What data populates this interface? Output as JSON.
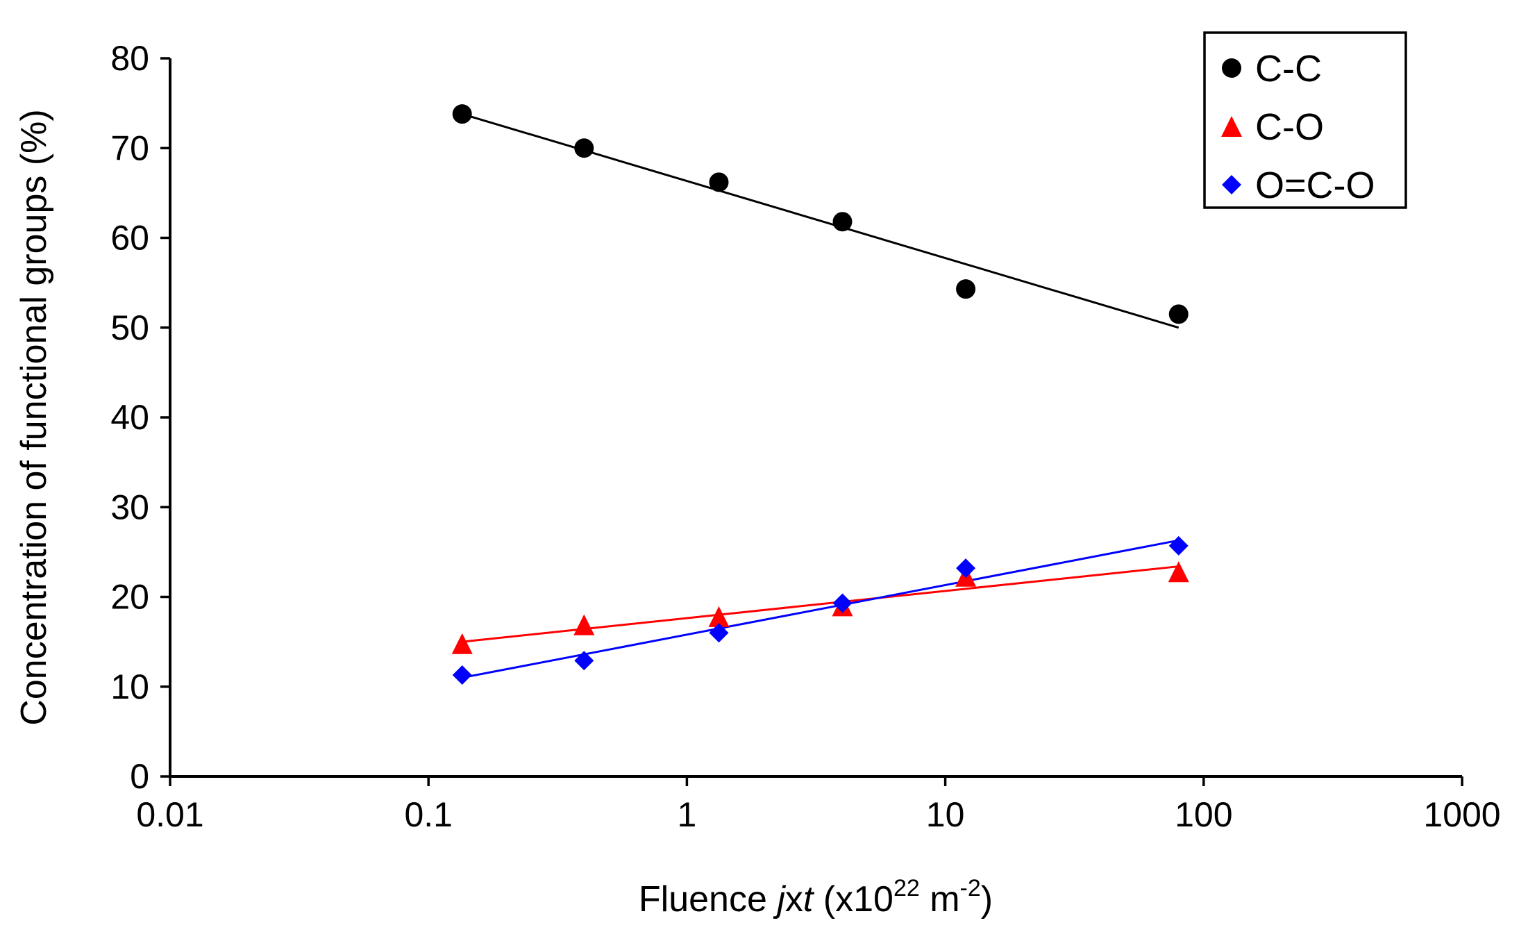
{
  "chart_data": {
    "type": "scatter",
    "title": "",
    "xlabel": {
      "prefix": "Fluence ",
      "italic": "j",
      "mid": "x",
      "italic2": "t",
      "unit_open": "  (x10",
      "sup1": "22",
      "unit_mid": " m",
      "sup2": "-2",
      "unit_close": ")"
    },
    "ylabel": "Concentration of functional groups (%)",
    "xscale": "log",
    "xlim": [
      0.01,
      1000
    ],
    "ylim": [
      0,
      80
    ],
    "xticks": [
      0.01,
      0.1,
      1,
      10,
      100,
      1000
    ],
    "xtick_labels": [
      "0.01",
      "0.1",
      "1",
      "10",
      "100",
      "1000"
    ],
    "yticks": [
      0,
      10,
      20,
      30,
      40,
      50,
      60,
      70,
      80
    ],
    "ytick_labels": [
      "0",
      "10",
      "20",
      "30",
      "40",
      "50",
      "60",
      "70",
      "80"
    ],
    "grid": false,
    "legend_position": "top-right",
    "series": [
      {
        "name": "C-C",
        "marker": "circle",
        "color": "#000000",
        "x": [
          0.135,
          0.4,
          1.33,
          4.0,
          12.0,
          80.0
        ],
        "y": [
          73.8,
          70.0,
          66.2,
          61.8,
          54.3,
          51.5
        ],
        "trend": {
          "x": [
            0.135,
            80.0
          ],
          "y": [
            73.8,
            50.0
          ]
        }
      },
      {
        "name": "C-O",
        "marker": "triangle",
        "color": "#ff0000",
        "x": [
          0.135,
          0.4,
          1.33,
          4.0,
          12.0,
          80.0
        ],
        "y": [
          14.8,
          16.9,
          17.8,
          19.0,
          22.3,
          22.8
        ],
        "trend": {
          "x": [
            0.135,
            80.0
          ],
          "y": [
            15.0,
            23.4
          ]
        }
      },
      {
        "name": "O=C-O",
        "marker": "diamond",
        "color": "#0000ff",
        "x": [
          0.135,
          0.4,
          1.33,
          4.0,
          12.0,
          80.0
        ],
        "y": [
          11.3,
          12.9,
          16.0,
          19.3,
          23.2,
          25.7
        ],
        "trend": {
          "x": [
            0.135,
            80.0
          ],
          "y": [
            11.0,
            26.3
          ]
        }
      }
    ]
  }
}
